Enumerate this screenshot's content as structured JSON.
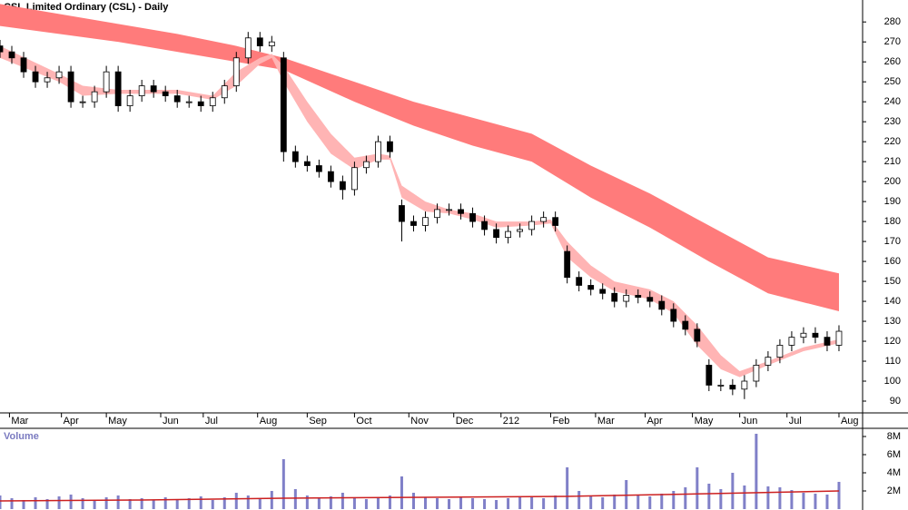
{
  "chart_data": [
    {
      "type": "candlestick",
      "title": "CSL Limited Ordinary (CSL) - Daily",
      "x": [
        0,
        5,
        10,
        15,
        20,
        25,
        30,
        35,
        40,
        45,
        50,
        55,
        60,
        65,
        70,
        75,
        80,
        85,
        90,
        95,
        100,
        105,
        110,
        115,
        120,
        125,
        130,
        135,
        140,
        145,
        150,
        155,
        160,
        165,
        170,
        175,
        180,
        185,
        190,
        195,
        200,
        205,
        210,
        215,
        220,
        225,
        230,
        235,
        240,
        245,
        250,
        255,
        260,
        265,
        270,
        275,
        280,
        285,
        290,
        295,
        300,
        305,
        310,
        315,
        320,
        325,
        330,
        335,
        340,
        345,
        350,
        355
      ],
      "open": [
        268,
        265,
        262,
        255,
        250,
        252,
        255,
        240,
        240,
        245,
        255,
        238,
        243,
        248,
        245,
        243,
        240,
        240,
        238,
        242,
        248,
        262,
        272,
        268,
        262,
        215,
        210,
        208,
        205,
        200,
        196,
        207,
        210,
        220,
        188,
        180,
        178,
        182,
        186,
        186,
        184,
        180,
        176,
        172,
        175,
        176,
        180,
        182,
        165,
        152,
        148,
        146,
        144,
        140,
        143,
        142,
        140,
        136,
        130,
        126,
        108,
        98,
        98,
        96,
        100,
        108,
        112,
        118,
        122,
        124,
        122,
        118
      ],
      "high": [
        271,
        268,
        265,
        258,
        255,
        258,
        258,
        243,
        248,
        258,
        258,
        246,
        251,
        251,
        248,
        246,
        243,
        243,
        245,
        251,
        265,
        275,
        275,
        273,
        265,
        218,
        213,
        211,
        208,
        203,
        210,
        213,
        223,
        223,
        191,
        183,
        185,
        189,
        189,
        189,
        187,
        183,
        179,
        178,
        179,
        183,
        185,
        185,
        168,
        155,
        151,
        149,
        147,
        146,
        146,
        145,
        143,
        139,
        133,
        129,
        111,
        101,
        101,
        103,
        111,
        115,
        121,
        125,
        127,
        127,
        125,
        128
      ],
      "low": [
        262,
        259,
        252,
        247,
        247,
        249,
        237,
        237,
        237,
        242,
        235,
        235,
        240,
        242,
        240,
        237,
        237,
        235,
        235,
        239,
        245,
        259,
        265,
        265,
        210,
        207,
        205,
        202,
        197,
        191,
        193,
        204,
        207,
        212,
        170,
        175,
        175,
        179,
        183,
        181,
        177,
        173,
        169,
        169,
        172,
        173,
        177,
        175,
        149,
        145,
        143,
        141,
        137,
        137,
        139,
        137,
        133,
        127,
        123,
        117,
        95,
        95,
        93,
        91,
        97,
        105,
        109,
        115,
        119,
        119,
        115,
        115
      ],
      "close": [
        265,
        262,
        255,
        250,
        252,
        255,
        240,
        240,
        245,
        255,
        238,
        243,
        248,
        245,
        243,
        240,
        240,
        238,
        242,
        248,
        262,
        272,
        268,
        270,
        215,
        210,
        208,
        205,
        200,
        196,
        207,
        210,
        220,
        215,
        180,
        178,
        182,
        186,
        186,
        184,
        180,
        176,
        172,
        175,
        176,
        180,
        182,
        178,
        152,
        148,
        146,
        144,
        140,
        143,
        142,
        140,
        136,
        130,
        126,
        120,
        98,
        98,
        96,
        100,
        108,
        112,
        118,
        122,
        124,
        122,
        118,
        125
      ],
      "long_band": {
        "color": "#ff7b7b",
        "x": [
          0,
          25,
          50,
          75,
          100,
          120,
          150,
          175,
          200,
          225,
          250,
          275,
          300,
          325,
          355
        ],
        "upper": [
          289,
          284,
          279,
          274,
          268,
          262,
          250,
          240,
          232,
          224,
          208,
          194,
          178,
          162,
          154
        ],
        "lower": [
          278,
          274,
          270,
          265,
          260,
          256,
          240,
          228,
          218,
          210,
          192,
          177,
          160,
          144,
          135
        ]
      },
      "short_band": {
        "color": "#ffb4b4",
        "x": [
          0,
          25,
          35,
          50,
          75,
          90,
          100,
          110,
          115,
          120,
          130,
          140,
          150,
          160,
          165,
          170,
          180,
          190,
          200,
          210,
          225,
          233,
          240,
          250,
          260,
          275,
          285,
          295,
          305,
          313,
          325,
          340,
          355
        ],
        "upper": [
          268,
          254,
          248,
          246,
          246,
          243,
          255,
          262,
          264,
          258,
          240,
          224,
          212,
          214,
          213,
          198,
          190,
          186,
          184,
          180,
          180,
          181,
          170,
          158,
          150,
          146,
          140,
          128,
          113,
          105,
          110,
          117,
          121
        ],
        "lower": [
          262,
          250,
          243,
          244,
          244,
          241,
          248,
          259,
          262,
          250,
          230,
          214,
          206,
          211,
          211,
          192,
          185,
          184,
          181,
          177,
          178,
          179,
          162,
          152,
          145,
          141,
          134,
          118,
          106,
          102,
          108,
          115,
          119
        ]
      },
      "xlim": [
        0,
        365
      ],
      "xticks": [
        {
          "value": 4,
          "label": "Mar"
        },
        {
          "value": 26,
          "label": "Apr"
        },
        {
          "value": 45,
          "label": "May"
        },
        {
          "value": 68,
          "label": "Jun"
        },
        {
          "value": 86,
          "label": "Jul"
        },
        {
          "value": 109,
          "label": "Aug"
        },
        {
          "value": 130,
          "label": "Sep"
        },
        {
          "value": 150,
          "label": "Oct"
        },
        {
          "value": 173,
          "label": "Nov"
        },
        {
          "value": 192,
          "label": "Dec"
        },
        212,
        {
          "value": 233,
          "label": "Feb"
        },
        {
          "value": 252,
          "label": "Mar"
        },
        {
          "value": 273,
          "label": "Apr"
        },
        {
          "value": 293,
          "label": "May"
        },
        {
          "value": 313,
          "label": "Jun"
        },
        {
          "value": 333,
          "label": "Jul"
        },
        {
          "value": 355,
          "label": "Aug"
        }
      ],
      "ylim": [
        85,
        291
      ],
      "yticks": [
        90,
        100,
        110,
        120,
        130,
        140,
        150,
        160,
        170,
        180,
        190,
        200,
        210,
        220,
        230,
        240,
        250,
        260,
        270,
        280
      ]
    },
    {
      "type": "bar",
      "title": "Volume",
      "color": "#8080c8",
      "x": [
        0,
        5,
        10,
        15,
        20,
        25,
        30,
        35,
        40,
        45,
        50,
        55,
        60,
        65,
        70,
        75,
        80,
        85,
        90,
        95,
        100,
        105,
        110,
        115,
        120,
        125,
        130,
        135,
        140,
        145,
        150,
        155,
        160,
        165,
        170,
        175,
        180,
        185,
        190,
        195,
        200,
        205,
        210,
        215,
        220,
        225,
        230,
        235,
        240,
        245,
        250,
        255,
        260,
        265,
        270,
        275,
        280,
        285,
        290,
        295,
        300,
        305,
        310,
        315,
        320,
        325,
        330,
        335,
        340,
        345,
        350,
        355
      ],
      "values": [
        1500000.0,
        1200000.0,
        1000000.0,
        1300000.0,
        1100000.0,
        1400000.0,
        1600000.0,
        1200000.0,
        1000000.0,
        1300000.0,
        1500000.0,
        1100000.0,
        1200000.0,
        1000000.0,
        1300000.0,
        1100000.0,
        1200000.0,
        1400000.0,
        1000000.0,
        1300000.0,
        1800000.0,
        1500000.0,
        1200000.0,
        2000000.0,
        5500000.0,
        2200000.0,
        1500000.0,
        1300000.0,
        1400000.0,
        1800000.0,
        1200000.0,
        1100000.0,
        1300000.0,
        1500000.0,
        3600000.0,
        1800000.0,
        1300000.0,
        1200000.0,
        1100000.0,
        1400000.0,
        1200000.0,
        1100000.0,
        1000000.0,
        1200000.0,
        1300000.0,
        1400000.0,
        1200000.0,
        1500000.0,
        4600000.0,
        2000000.0,
        1400000.0,
        1300000.0,
        1600000.0,
        3200000.0,
        1500000.0,
        1400000.0,
        1700000.0,
        2000000.0,
        2400000.0,
        4600000.0,
        2800000.0,
        2200000.0,
        4000000.0,
        2600000.0,
        8300000.0,
        2500000.0,
        2400000.0,
        2100000.0,
        1800000.0,
        1700000.0,
        1600000.0,
        3000000.0
      ],
      "average": {
        "color": "#cc2020",
        "x": [
          0,
          60,
          120,
          180,
          240,
          300,
          355
        ],
        "values": [
          900000.0,
          1000000.0,
          1200000.0,
          1300000.0,
          1400000.0,
          1700000.0,
          2000000.0
        ]
      },
      "xlim": [
        0,
        365
      ],
      "ylim": [
        0,
        9000000.0
      ],
      "yticks": [
        {
          "value": 2000000.0,
          "label": "2M"
        },
        {
          "value": 4000000.0,
          "label": "4M"
        },
        {
          "value": 6000000.0,
          "label": "6M"
        },
        {
          "value": 8000000.0,
          "label": "8M"
        }
      ]
    }
  ]
}
